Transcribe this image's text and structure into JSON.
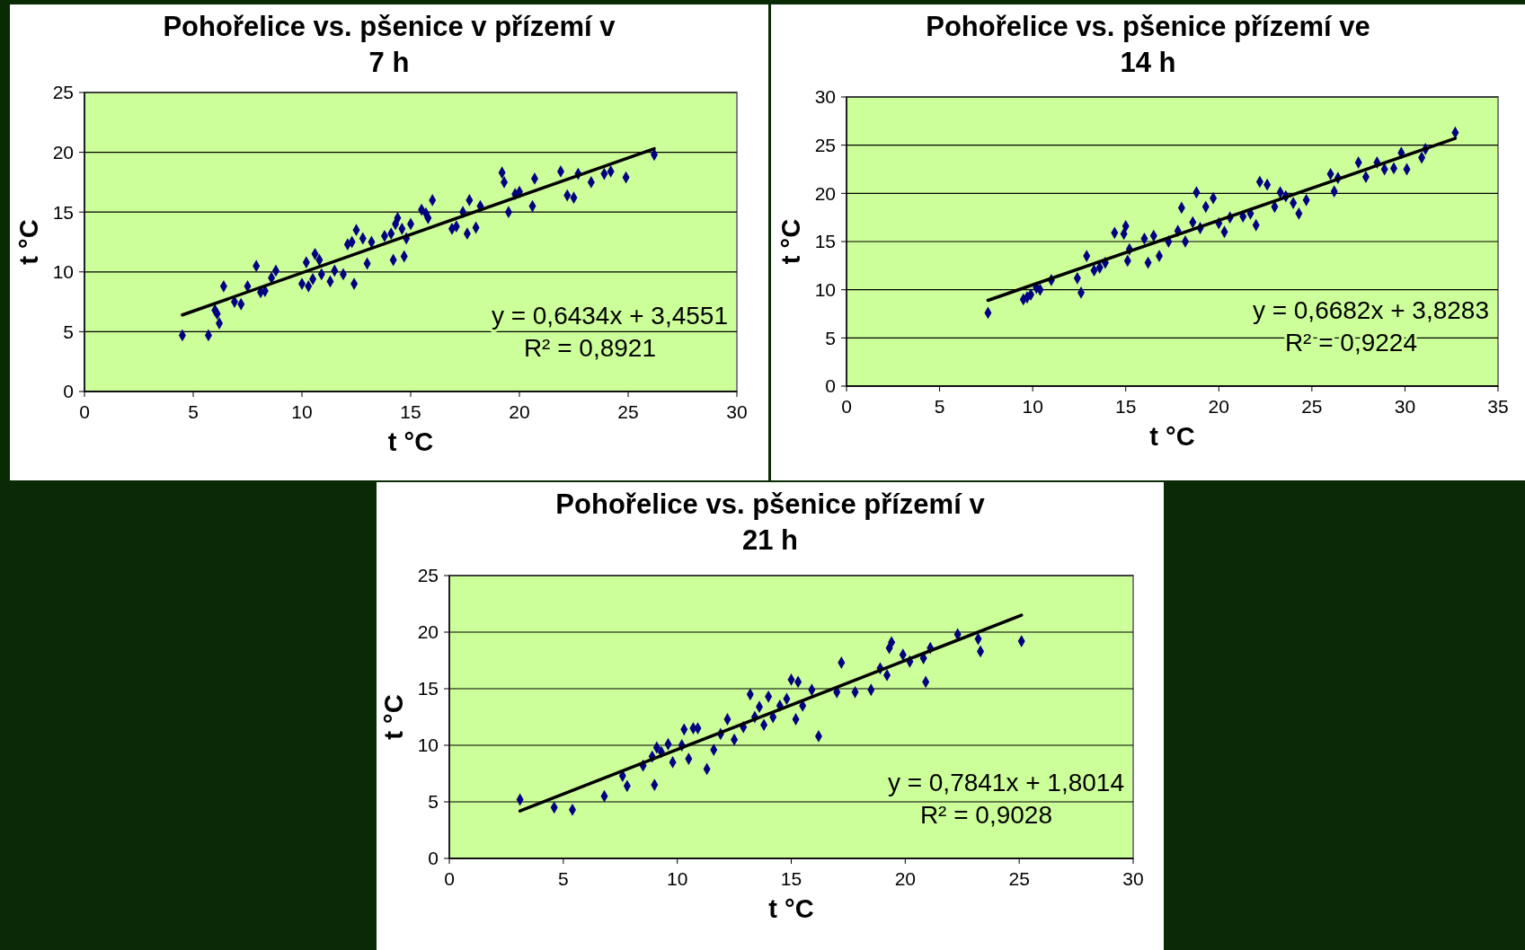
{
  "chart_data": [
    {
      "type": "scatter",
      "title": "Pohořelice vs. pšenice v přízemí v\n7 h",
      "xlabel": "t °C",
      "ylabel": "t °C",
      "xlim": [
        0,
        30
      ],
      "ylim": [
        0,
        25
      ],
      "xticks": [
        0,
        5,
        10,
        15,
        20,
        25,
        30
      ],
      "yticks": [
        0,
        5,
        10,
        15,
        20,
        25
      ],
      "grid": "y",
      "marker": "diamond",
      "annotations": [
        "y = 0,6434x + 3,4551",
        "R² = 0,8921"
      ],
      "series": [
        {
          "type": "scatter",
          "color": "#000080",
          "x": [
            4.5,
            5.7,
            6.0,
            6.1,
            6.2,
            6.4,
            6.9,
            7.2,
            7.5,
            7.9,
            8.1,
            8.3,
            8.6,
            8.8,
            10.0,
            10.2,
            10.3,
            10.5,
            10.6,
            10.8,
            10.9,
            11.3,
            11.5,
            11.9,
            12.1,
            12.3,
            12.4,
            12.5,
            12.8,
            13.0,
            13.2,
            13.8,
            14.1,
            14.2,
            14.3,
            14.4,
            14.6,
            14.7,
            14.8,
            15.0,
            15.5,
            15.7,
            15.8,
            16.0,
            16.9,
            17.1,
            17.4,
            17.6,
            17.7,
            18.0,
            18.2,
            19.2,
            19.3,
            19.5,
            19.8,
            20.0,
            20.6,
            20.7,
            21.9,
            22.2,
            22.5,
            22.7,
            23.3,
            23.9,
            24.2,
            24.9,
            26.2
          ],
          "values": [
            4.7,
            4.7,
            6.8,
            6.5,
            5.7,
            8.8,
            7.5,
            7.3,
            8.8,
            10.5,
            8.3,
            8.4,
            9.5,
            10.1,
            9.0,
            10.8,
            8.8,
            9.4,
            11.5,
            11.0,
            9.8,
            9.2,
            10.1,
            9.8,
            12.3,
            12.5,
            9.0,
            13.5,
            12.8,
            10.7,
            12.5,
            13.0,
            13.2,
            11.0,
            14.0,
            14.5,
            13.6,
            11.3,
            12.8,
            14.0,
            15.2,
            14.9,
            14.5,
            16.0,
            13.6,
            13.8,
            15.0,
            13.2,
            16.0,
            13.7,
            15.5,
            18.3,
            17.5,
            15.0,
            16.5,
            16.7,
            15.5,
            17.8,
            18.4,
            16.4,
            16.2,
            18.2,
            17.5,
            18.2,
            18.4,
            17.9,
            19.8
          ]
        },
        {
          "type": "line",
          "color": "#000000",
          "marker": "none",
          "x": [
            4.5,
            26.2
          ],
          "values": [
            6.4,
            20.3
          ]
        }
      ]
    },
    {
      "type": "scatter",
      "title": "Pohořelice vs. pšenice přízemí ve\n14 h",
      "xlabel": "t °C",
      "ylabel": "t °C",
      "xlim": [
        0,
        35
      ],
      "ylim": [
        0,
        30
      ],
      "xticks": [
        0,
        5,
        10,
        15,
        20,
        25,
        30,
        35
      ],
      "yticks": [
        0,
        5,
        10,
        15,
        20,
        25,
        30
      ],
      "grid": "y",
      "marker": "diamond",
      "annotations": [
        "y = 0,6682x + 3,8283",
        "R² = 0,9224"
      ],
      "series": [
        {
          "type": "scatter",
          "color": "#000080",
          "x": [
            7.6,
            9.5,
            9.7,
            9.9,
            10.2,
            10.4,
            11.0,
            12.4,
            12.6,
            12.9,
            13.3,
            13.6,
            13.9,
            14.4,
            14.9,
            15.0,
            15.1,
            15.2,
            16.0,
            16.2,
            16.5,
            16.8,
            17.3,
            17.8,
            18.0,
            18.2,
            18.8,
            18.6,
            19.0,
            19.3,
            19.7,
            20.0,
            20.3,
            20.6,
            21.3,
            21.7,
            22.0,
            22.2,
            22.6,
            23.0,
            23.3,
            23.6,
            24.0,
            24.3,
            24.7,
            26.0,
            26.2,
            26.4,
            27.5,
            27.9,
            28.5,
            28.9,
            29.4,
            29.8,
            30.1,
            30.9,
            31.1,
            32.7
          ],
          "values": [
            7.6,
            9.0,
            9.2,
            9.5,
            10.2,
            10.0,
            11.0,
            11.2,
            9.7,
            13.5,
            12.0,
            12.3,
            12.8,
            15.9,
            15.8,
            16.6,
            13.0,
            14.2,
            15.3,
            12.8,
            15.6,
            13.5,
            15.0,
            16.1,
            18.5,
            15.0,
            20.1,
            17.0,
            16.4,
            18.6,
            19.5,
            16.9,
            16.0,
            17.5,
            17.6,
            17.9,
            16.7,
            21.2,
            20.9,
            18.6,
            20.1,
            19.7,
            19.0,
            17.9,
            19.3,
            22.0,
            20.2,
            21.6,
            23.2,
            21.7,
            23.2,
            22.5,
            22.6,
            24.2,
            22.5,
            23.7,
            24.6,
            26.3
          ]
        },
        {
          "type": "line",
          "color": "#000000",
          "marker": "none",
          "x": [
            7.6,
            32.7
          ],
          "values": [
            8.9,
            25.7
          ]
        }
      ]
    },
    {
      "type": "scatter",
      "title": "Pohořelice vs. pšenice přízemí v\n21 h",
      "xlabel": "t °C",
      "ylabel": "t °C",
      "xlim": [
        0,
        30
      ],
      "ylim": [
        0,
        25
      ],
      "xticks": [
        0,
        5,
        10,
        15,
        20,
        25,
        30
      ],
      "yticks": [
        0,
        5,
        10,
        15,
        20,
        25
      ],
      "grid": "y",
      "marker": "diamond",
      "annotations": [
        "y = 0,7841x + 1,8014",
        "R² = 0,9028"
      ],
      "series": [
        {
          "type": "scatter",
          "color": "#000080",
          "x": [
            3.1,
            4.6,
            5.4,
            6.8,
            7.6,
            7.8,
            8.5,
            8.9,
            9.1,
            9.0,
            9.3,
            9.6,
            9.8,
            10.2,
            10.3,
            10.5,
            10.7,
            10.9,
            11.3,
            11.6,
            11.9,
            12.2,
            12.5,
            12.9,
            13.2,
            13.4,
            13.6,
            13.8,
            14.0,
            14.2,
            14.5,
            14.8,
            15.0,
            15.2,
            15.3,
            15.5,
            15.9,
            16.2,
            17.0,
            17.2,
            17.8,
            18.5,
            18.9,
            19.2,
            19.3,
            19.4,
            19.9,
            20.2,
            20.8,
            20.9,
            21.1,
            22.3,
            23.2,
            23.3,
            25.1
          ],
          "values": [
            5.2,
            4.5,
            4.3,
            5.5,
            7.3,
            6.4,
            8.2,
            9.0,
            9.8,
            6.5,
            9.4,
            10.1,
            8.5,
            10.0,
            11.4,
            8.8,
            11.5,
            11.5,
            7.9,
            9.6,
            11.0,
            12.3,
            10.5,
            11.6,
            14.5,
            12.5,
            13.4,
            11.8,
            14.3,
            12.5,
            13.5,
            14.1,
            15.8,
            12.3,
            15.6,
            13.5,
            14.9,
            10.8,
            14.7,
            17.3,
            14.7,
            14.9,
            16.8,
            16.2,
            18.6,
            19.1,
            18.0,
            17.4,
            17.7,
            15.6,
            18.6,
            19.8,
            19.4,
            18.3,
            19.2
          ]
        },
        {
          "type": "line",
          "color": "#000000",
          "marker": "none",
          "x": [
            3.1,
            25.1
          ],
          "values": [
            4.2,
            21.5
          ]
        }
      ]
    }
  ]
}
